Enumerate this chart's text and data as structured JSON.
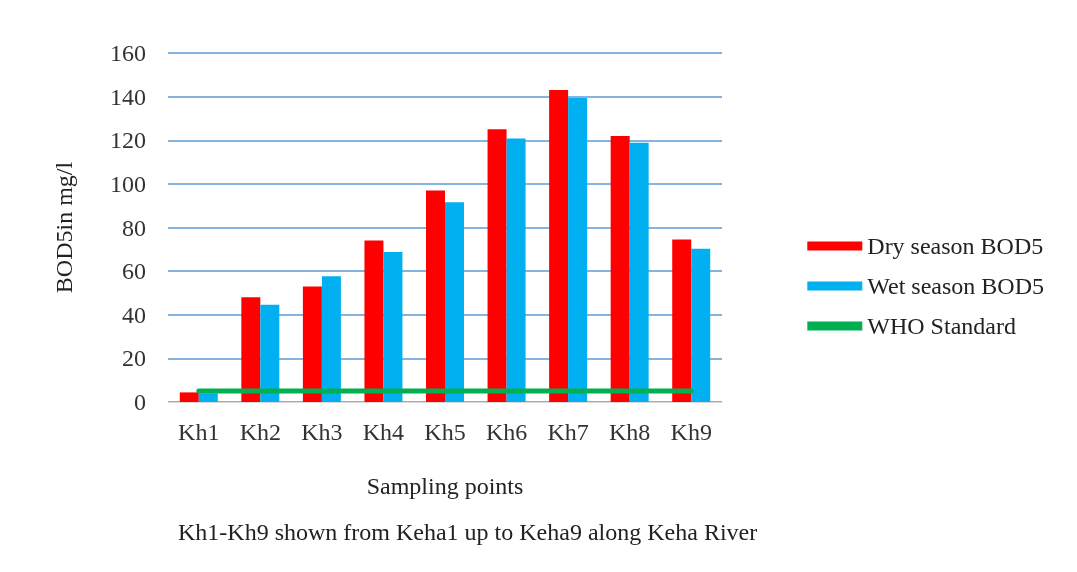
{
  "chart_data": {
    "type": "bar",
    "xlabel": "Sampling points",
    "ylabel": "BOD5in mg/l",
    "annotations": [
      "Kh1-Kh9 shown from Keha1 up to Keha9 along Keha River"
    ],
    "categories": [
      "Kh1",
      "Kh2",
      "Kh3",
      "Kh4",
      "Kh5",
      "Kh6",
      "Kh7",
      "Kh8",
      "Kh9"
    ],
    "series": [
      {
        "name": "Dry season BOD5",
        "color": "#ff0000",
        "values": [
          4.4,
          48,
          53,
          74,
          97,
          125,
          143,
          122,
          74.5
        ]
      },
      {
        "name": "Wet season BOD5",
        "color": "#00b0f0",
        "values": [
          4,
          44.6,
          57.7,
          68.8,
          91.6,
          120.8,
          139.4,
          118.8,
          70.3
        ]
      },
      {
        "name": "WHO Standard",
        "type": "line",
        "color": "#00b050",
        "values": [
          5,
          5,
          5,
          5,
          5,
          5,
          5,
          5,
          5
        ]
      }
    ],
    "ylim": [
      0,
      160
    ],
    "yticks": [
      0,
      20,
      40,
      60,
      80,
      100,
      120,
      140,
      160
    ],
    "grid": "y",
    "legend": "right",
    "marker": "none"
  }
}
